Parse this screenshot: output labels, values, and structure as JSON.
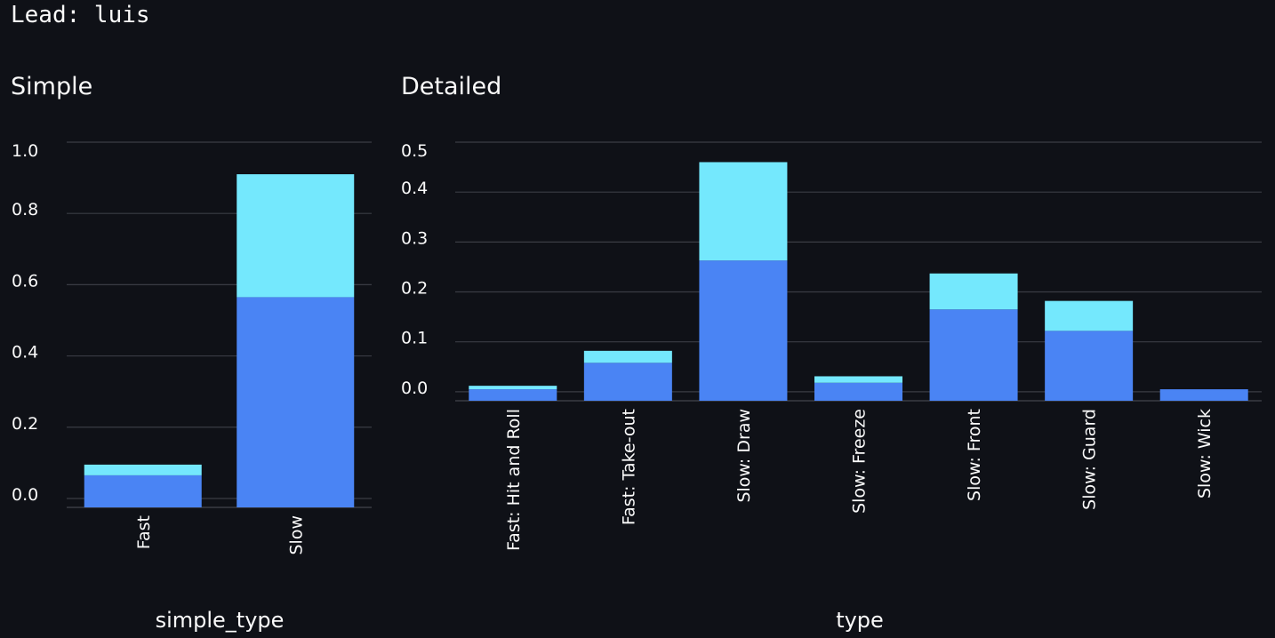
{
  "lead": "Lead: luis",
  "colors": {
    "background": "#0f1117",
    "grid": "#3a3c44",
    "series_bottom": "#4a84f4",
    "series_top": "#74e8fd",
    "text": "#fafafa"
  },
  "chart_data": [
    {
      "type": "bar",
      "stacked": true,
      "title": "Simple",
      "xlabel": "simple_type",
      "ylabel": "",
      "categories": [
        "Fast",
        "Slow"
      ],
      "series": [
        {
          "values": [
            0.065,
            0.565
          ]
        },
        {
          "values": [
            0.03,
            0.345
          ]
        }
      ],
      "yticks": [
        0.0,
        0.2,
        0.4,
        0.6,
        0.8,
        1.0
      ],
      "ytick_labels": [
        "0.0",
        "0.2",
        "0.4",
        "0.6",
        "0.8",
        "1.0"
      ],
      "ylim": [
        -0.025,
        1.0
      ],
      "grid": true,
      "legend": "none"
    },
    {
      "type": "bar",
      "stacked": true,
      "title": "Detailed",
      "xlabel": "type",
      "ylabel": "",
      "categories": [
        "Fast: Hit and Roll",
        "Fast: Take-out",
        "Slow: Draw",
        "Slow: Freeze",
        "Slow: Front",
        "Slow: Guard",
        "Slow: Wick"
      ],
      "series": [
        {
          "values": [
            0.005,
            0.058,
            0.263,
            0.018,
            0.165,
            0.122,
            0.005
          ]
        },
        {
          "values": [
            0.007,
            0.024,
            0.197,
            0.013,
            0.072,
            0.06,
            0.0
          ]
        }
      ],
      "yticks": [
        0.0,
        0.1,
        0.2,
        0.3,
        0.4,
        0.5
      ],
      "ytick_labels": [
        "0.0",
        "0.1",
        "0.2",
        "0.3",
        "0.4",
        "0.5"
      ],
      "ylim": [
        -0.018,
        0.5
      ],
      "grid": true,
      "legend": "none"
    }
  ]
}
